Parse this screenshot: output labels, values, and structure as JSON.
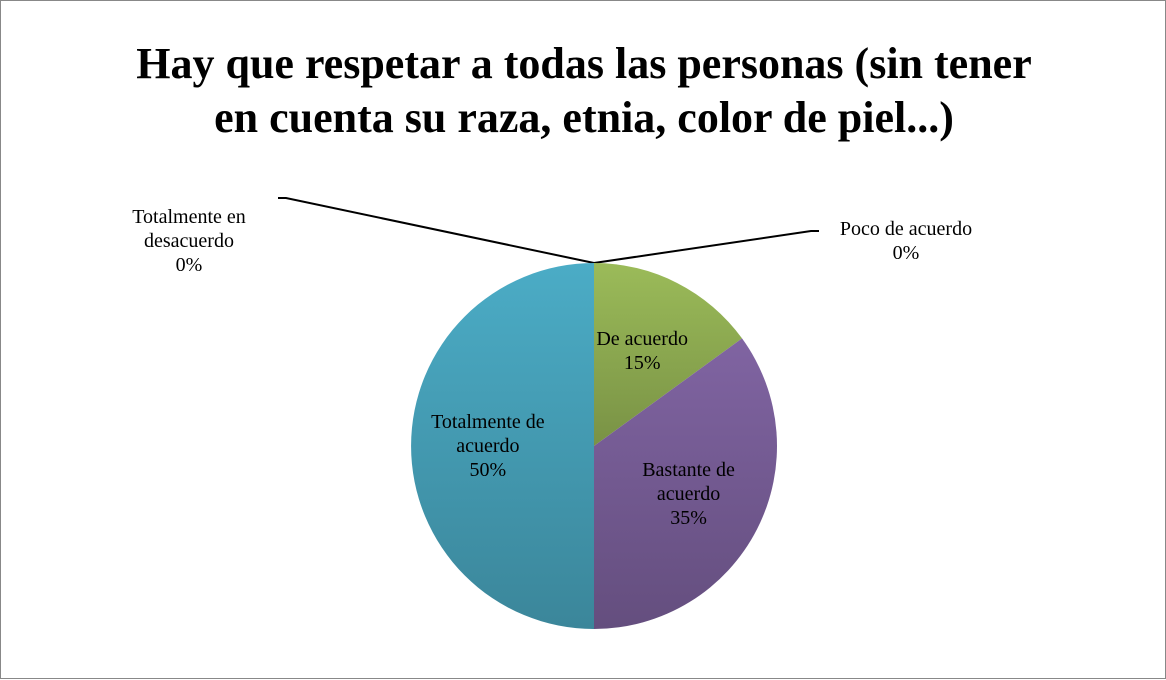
{
  "chart_data": {
    "type": "pie",
    "title": "Hay que respetar a todas las personas (sin tener en cuenta su raza, etnia, color de piel...)",
    "categories": [
      "Totalmente en desacuerdo",
      "Poco de acuerdo",
      "De acuerdo",
      "Bastante de acuerdo",
      "Totalmente de acuerdo"
    ],
    "values": [
      0,
      0,
      15,
      35,
      50
    ],
    "value_labels": [
      "0%",
      "0%",
      "15%",
      "35%",
      "50%"
    ],
    "colors": [
      "#4f81bd",
      "#c0504d",
      "#9bbb59",
      "#8064a2",
      "#4bacc6"
    ]
  }
}
